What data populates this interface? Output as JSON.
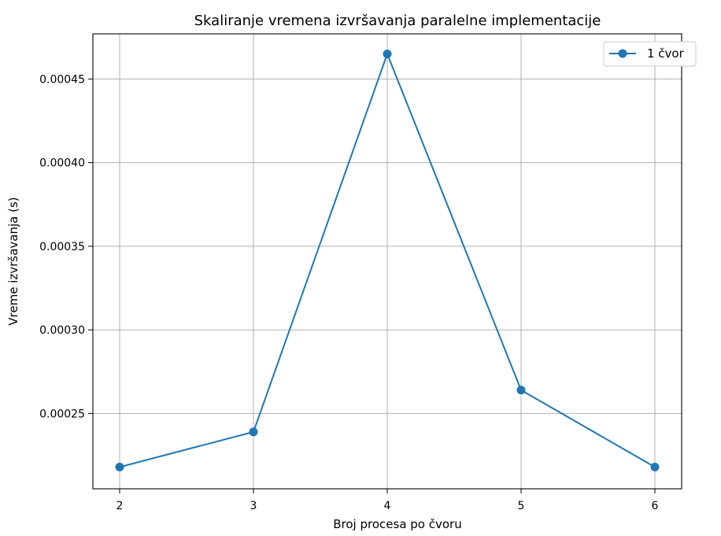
{
  "chart_data": {
    "type": "line",
    "title": "Skaliranje vremena izvršavanja paralelne implementacije",
    "xlabel": "Broj procesa po čvoru",
    "ylabel": "Vreme izvršavanja (s)",
    "x": [
      2,
      3,
      4,
      5,
      6
    ],
    "xticks": [
      "2",
      "3",
      "4",
      "5",
      "6"
    ],
    "yticks": [
      "0.00025",
      "0.00030",
      "0.00035",
      "0.00040",
      "0.00045"
    ],
    "xlim": [
      1.8,
      6.2
    ],
    "ylim": [
      0.000205,
      0.000477
    ],
    "grid": true,
    "legend_position": "top-right",
    "series": [
      {
        "name": "1 čvor",
        "color": "#1f77b4",
        "marker": "circle",
        "values": [
          0.000218,
          0.000239,
          0.000465,
          0.000264,
          0.000218
        ]
      }
    ]
  }
}
